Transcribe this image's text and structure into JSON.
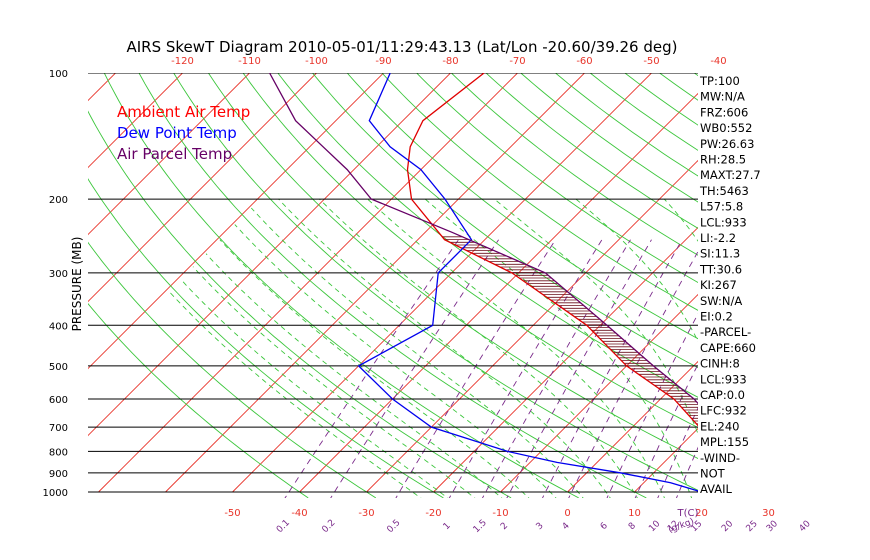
{
  "chart_data": {
    "type": "line",
    "title": "AIRS SkewT Diagram 2010-05-01/11:29:43.13 (Lat/Lon -20.60/39.26 deg)",
    "ylabel": "PRESSURE (MB)",
    "y_scale": "log",
    "ylim": [
      1000,
      100
    ],
    "pressure_ticks": [
      "100",
      "200",
      "300",
      "400",
      "500",
      "600",
      "700",
      "800",
      "900",
      "1000"
    ],
    "top_temp_ticks": [
      "-120",
      "-110",
      "-100",
      "-90",
      "-80",
      "-70",
      "-60",
      "-50",
      "-40"
    ],
    "bottom_temp_ticks": [
      "-50",
      "-40",
      "-30",
      "-20",
      "-10",
      "0",
      "10",
      "20",
      "30"
    ],
    "bottom_temp_unit": "T(C)",
    "mixing_ratio_ticks": [
      "0.1",
      "0.2",
      "0.5",
      "1",
      "1.5",
      "2",
      "3",
      "4",
      "6",
      "8",
      "10",
      "12",
      "15",
      "20",
      "25",
      "30",
      "40"
    ],
    "mixing_ratio_unit": "(g/kg)",
    "legend": [
      {
        "label": "Ambient Air Temp",
        "color": "#ff0000"
      },
      {
        "label": "Dew Point Temp",
        "color": "#0000ff"
      },
      {
        "label": "Air Parcel Temp",
        "color": "#660066"
      }
    ],
    "series": [
      {
        "name": "Ambient Air Temp",
        "x": [
          29,
          26,
          21,
          19,
          16,
          10,
          2,
          -10,
          -22,
          -41,
          -56,
          -67,
          -72,
          -75,
          -77,
          -75
        ],
        "y": [
          1000,
          950,
          900,
          850,
          800,
          700,
          600,
          500,
          400,
          300,
          250,
          200,
          170,
          150,
          130,
          100
        ]
      },
      {
        "name": "Dew Point Temp",
        "x": [
          20,
          14,
          5,
          -6,
          -15,
          -30,
          -40,
          -50,
          -45,
          -52,
          -52,
          -62,
          -70,
          -78,
          -85,
          -89
        ],
        "y": [
          1000,
          950,
          900,
          850,
          800,
          700,
          600,
          500,
          400,
          300,
          250,
          200,
          170,
          150,
          130,
          100
        ]
      },
      {
        "name": "Air Parcel Temp",
        "x": [
          29,
          22,
          20,
          16,
          13,
          5,
          -6,
          -19,
          -36,
          -56,
          -73,
          -81,
          -88,
          -96,
          -107
        ],
        "y": [
          1000,
          933,
          900,
          800,
          700,
          600,
          500,
          400,
          300,
          240,
          200,
          170,
          150,
          130,
          100
        ]
      }
    ],
    "indices": [
      "TP:100",
      "MW:N/A",
      "FRZ:606",
      "WB0:552",
      "PW:26.63",
      "RH:28.5",
      "MAXT:27.7",
      "TH:5463",
      "L57:5.8",
      "LCL:933",
      "LI:-2.2",
      "SI:11.3",
      "TT:30.6",
      "KI:267",
      "SW:N/A",
      "EI:0.2",
      "-PARCEL-",
      "CAPE:660",
      "CINH:8",
      "LCL:933",
      "CAP:0.0",
      "LFC:932",
      "EL:240",
      "MPL:155",
      "-WIND-",
      "NOT",
      "AVAIL"
    ]
  }
}
